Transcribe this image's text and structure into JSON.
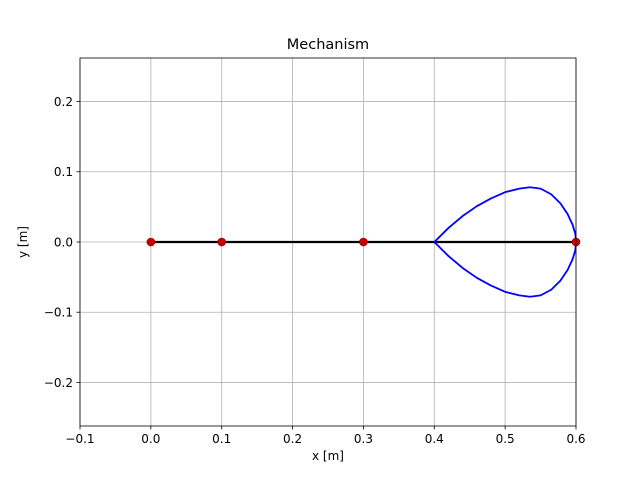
{
  "chart_data": {
    "type": "line",
    "title": "Mechanism",
    "xlabel": "x [m]",
    "ylabel": "y [m]",
    "xlim": [
      -0.1,
      0.6
    ],
    "ylim": [
      -0.262,
      0.262
    ],
    "xticks": [
      -0.1,
      0.0,
      0.1,
      0.2,
      0.3,
      0.4,
      0.5,
      0.6
    ],
    "xtick_labels": [
      "−0.1",
      "0.0",
      "0.1",
      "0.2",
      "0.3",
      "0.4",
      "0.5",
      "0.6"
    ],
    "yticks": [
      -0.2,
      -0.1,
      0.0,
      0.1,
      0.2
    ],
    "ytick_labels": [
      "−0.2",
      "−0.1",
      "0.0",
      "0.1",
      "0.2"
    ],
    "grid": true,
    "series": [
      {
        "kind": "link-line",
        "color": "#000000",
        "x": [
          0.0,
          0.1,
          0.3,
          0.6
        ],
        "y": [
          0.0,
          0.0,
          0.0,
          0.0
        ]
      },
      {
        "kind": "joints",
        "color": "#cc0000",
        "x": [
          0.0,
          0.1,
          0.3,
          0.6
        ],
        "y": [
          0.0,
          0.0,
          0.0,
          0.0
        ]
      },
      {
        "kind": "trace-curve",
        "color": "#0000ff",
        "x": [
          0.4,
          0.42,
          0.44,
          0.46,
          0.48,
          0.5,
          0.52,
          0.535,
          0.55,
          0.565,
          0.578,
          0.588,
          0.595,
          0.599,
          0.6,
          0.599,
          0.595,
          0.588,
          0.578,
          0.565,
          0.55,
          0.535,
          0.52,
          0.5,
          0.48,
          0.46,
          0.44,
          0.42,
          0.4
        ],
        "y": [
          0.0,
          0.02,
          0.037,
          0.051,
          0.062,
          0.071,
          0.076,
          0.078,
          0.076,
          0.068,
          0.055,
          0.04,
          0.025,
          0.012,
          0.0,
          -0.012,
          -0.025,
          -0.04,
          -0.055,
          -0.068,
          -0.076,
          -0.078,
          -0.076,
          -0.071,
          -0.062,
          -0.051,
          -0.037,
          -0.02,
          0.0
        ]
      }
    ]
  }
}
